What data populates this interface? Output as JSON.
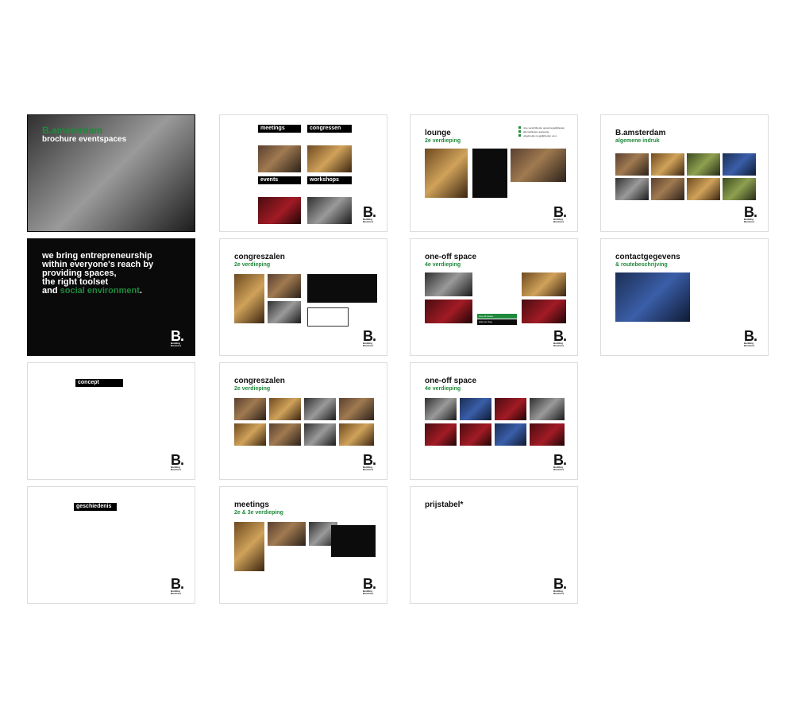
{
  "cover": {
    "title": "B.amsterdam",
    "subtitle": "brochure eventspaces"
  },
  "slogan": {
    "line1": "we bring entrepreneurship",
    "line2": "within everyone's reach by",
    "line3": "providing spaces,",
    "line4": "the right toolset",
    "line5_prefix": "and ",
    "line5_accent": "social environment",
    "line5_suffix": "."
  },
  "logo": {
    "mark": "B.",
    "tag1": "Building",
    "tag2": "Business"
  },
  "p_categories": {
    "meetings": "meetings",
    "congressen": "congressen",
    "events": "events",
    "workshops": "workshops"
  },
  "p_lounge": {
    "title": "lounge",
    "sub": "2e verdieping",
    "bullets": [
      "nine verschillende opstelmogelijkheden",
      "alle faciliteiten aanwezig",
      "uitgebreide mogelijkheden voor..."
    ]
  },
  "p_general": {
    "title": "B.amsterdam",
    "sub": "algemene indruk"
  },
  "p_congres1": {
    "title": "congreszalen",
    "sub": "2e verdieping"
  },
  "p_oneoff1": {
    "title": "one-off space",
    "sub": "4e verdieping",
    "tab_label": "one-off space",
    "tab_price": "prijs per dag"
  },
  "p_contact": {
    "title": "contactgegevens",
    "sub": "& routebeschrijving"
  },
  "p_concept": {
    "title": "concept"
  },
  "p_congres2": {
    "title": "congreszalen",
    "sub": "2e verdieping"
  },
  "p_oneoff2": {
    "title": "one-off space",
    "sub": "4e verdieping"
  },
  "p_history": {
    "title": "geschiedenis"
  },
  "p_meetings": {
    "title": "meetings",
    "sub": "2e & 3e verdieping"
  },
  "p_prices": {
    "title": "prijstabel*"
  },
  "colors": {
    "accent": "#1f8a3c",
    "dark": "#0a0a0a"
  }
}
